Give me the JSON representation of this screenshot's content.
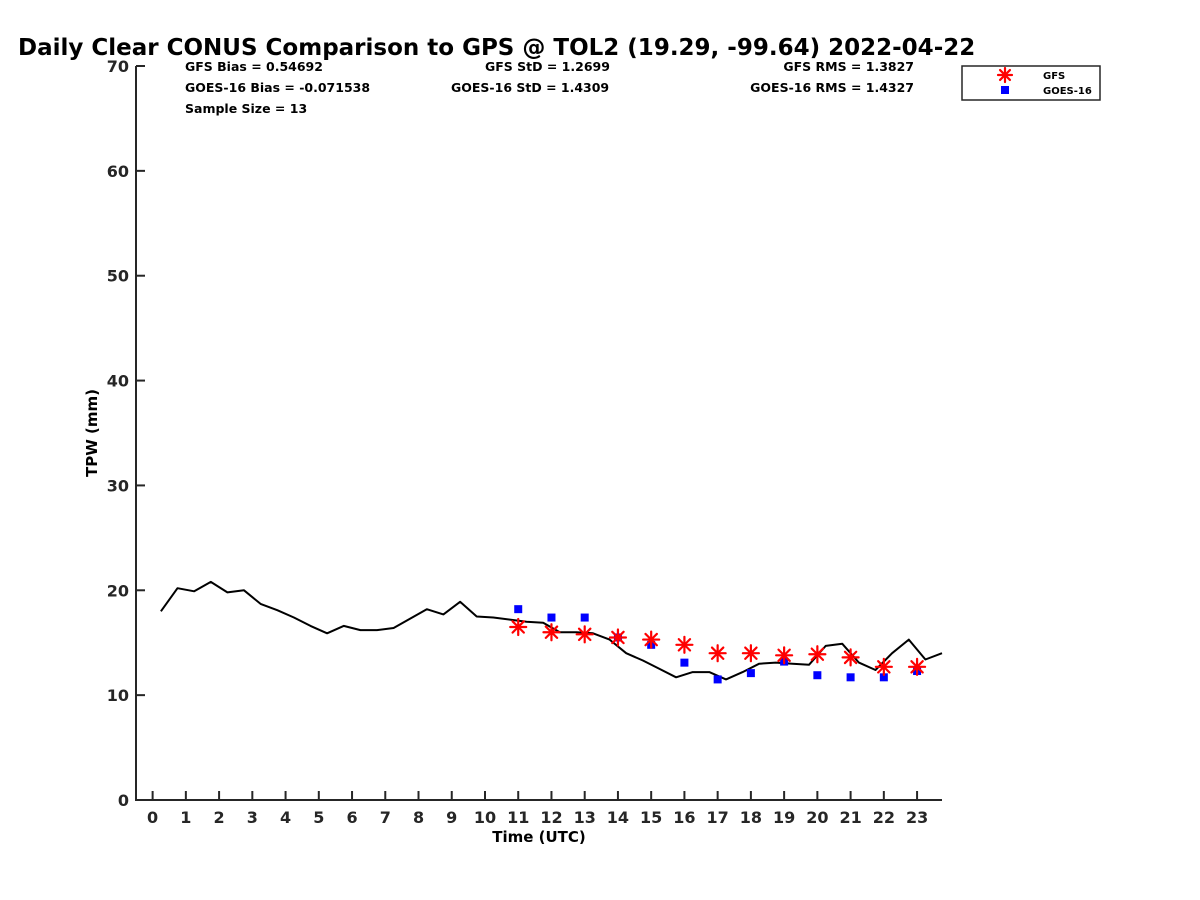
{
  "chart_data": {
    "type": "scatter",
    "title": "Daily Clear CONUS Comparison to GPS @ TOL2 (19.29, -99.64) 2022-04-22",
    "xlabel": "Time (UTC)",
    "ylabel": "TPW (mm)",
    "xlim": [
      -0.5,
      23.75
    ],
    "ylim": [
      0,
      70
    ],
    "xticks": [
      "0",
      "1",
      "2",
      "3",
      "4",
      "5",
      "6",
      "7",
      "8",
      "9",
      "10",
      "11",
      "12",
      "13",
      "14",
      "15",
      "16",
      "17",
      "18",
      "19",
      "20",
      "21",
      "22",
      "23"
    ],
    "yticks": [
      "0",
      "10",
      "20",
      "30",
      "40",
      "50",
      "60",
      "70"
    ],
    "grid": false,
    "legend_position": "top-right",
    "stats": {
      "gfs_bias": "GFS Bias = 0.54692",
      "goes_bias": "GOES-16 Bias = -0.071538",
      "sample_size": "Sample Size = 13",
      "gfs_std": "GFS StD = 1.2699",
      "goes_std": "GOES-16 StD = 1.4309",
      "gfs_rms": "GFS RMS = 1.3827",
      "goes_rms": "GOES-16 RMS = 1.4327"
    },
    "series": [
      {
        "kind": "line",
        "color": "#000000",
        "x": [
          0.25,
          0.75,
          1.25,
          1.75,
          2.25,
          2.75,
          3.25,
          3.75,
          4.25,
          4.75,
          5.25,
          5.75,
          6.25,
          6.75,
          7.25,
          7.75,
          8.25,
          8.75,
          9.25,
          9.75,
          10.25,
          10.75,
          11.25,
          11.75,
          12.25,
          12.75,
          13.25,
          13.75,
          14.25,
          14.75,
          15.25,
          15.75,
          16.25,
          16.75,
          17.25,
          17.75,
          18.25,
          18.75,
          19.25,
          19.75,
          20.25,
          20.75,
          21.25,
          21.75,
          22.25,
          22.75,
          23.25,
          23.75
        ],
        "y": [
          18.0,
          20.2,
          19.9,
          20.8,
          19.8,
          20.0,
          18.7,
          18.1,
          17.4,
          16.6,
          15.9,
          16.6,
          16.2,
          16.2,
          16.4,
          17.3,
          18.2,
          17.7,
          18.9,
          17.5,
          17.4,
          17.2,
          17.0,
          16.9,
          16.0,
          16.0,
          15.9,
          15.3,
          14.0,
          13.3,
          12.5,
          11.7,
          12.2,
          12.2,
          11.5,
          12.2,
          13.0,
          13.1,
          13.0,
          12.9,
          14.7,
          14.9,
          13.1,
          12.4,
          14.0,
          15.3,
          13.4,
          14.0
        ]
      },
      {
        "name": "GFS",
        "kind": "marker-asterisk",
        "color": "#ff0000",
        "x": [
          11,
          12,
          13,
          14,
          15,
          16,
          17,
          18,
          19,
          20,
          21,
          22,
          23
        ],
        "y": [
          16.5,
          16.0,
          15.8,
          15.5,
          15.3,
          14.8,
          14.0,
          14.0,
          13.8,
          13.9,
          13.6,
          12.7,
          12.7
        ]
      },
      {
        "name": "GOES-16",
        "kind": "marker-square",
        "color": "#0000ff",
        "x": [
          11,
          12,
          13,
          14,
          15,
          16,
          17,
          18,
          19,
          20,
          21,
          22,
          23
        ],
        "y": [
          18.2,
          17.4,
          17.4,
          15.5,
          14.8,
          13.1,
          11.5,
          12.1,
          13.2,
          11.9,
          11.7,
          11.7,
          12.3
        ]
      }
    ]
  }
}
